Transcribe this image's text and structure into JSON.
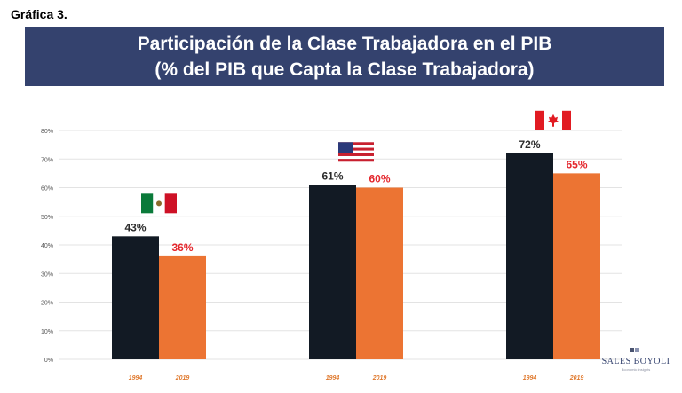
{
  "figure_label": "Gráfica 3.",
  "header": {
    "title_line1": "Participación de la Clase Trabajadora en el PIB",
    "title_line2": "(% del PIB que Capta la Clase Trabajadora)",
    "banner_color": "#34426e"
  },
  "chart_data": {
    "type": "bar",
    "groups": [
      {
        "flag": "mexico-flag-icon",
        "years": [
          "1994",
          "2019"
        ],
        "values": [
          43,
          36
        ],
        "labels": [
          "43%",
          "36%"
        ]
      },
      {
        "flag": "usa-flag-icon",
        "years": [
          "1994",
          "2019"
        ],
        "values": [
          61,
          60
        ],
        "labels": [
          "61%",
          "60%"
        ]
      },
      {
        "flag": "canada-flag-icon",
        "years": [
          "1994",
          "2019"
        ],
        "values": [
          72,
          65
        ],
        "labels": [
          "72%",
          "65%"
        ]
      }
    ],
    "series_colors": [
      "#121a24",
      "#ec7433"
    ],
    "label_colors": [
      "#2b2b2b",
      "#e4262c"
    ],
    "year_label_color": "#e07a2f",
    "yticks": [
      "0%",
      "10%",
      "20%",
      "30%",
      "40%",
      "50%",
      "60%",
      "70%",
      "80%"
    ],
    "ylim": [
      0,
      80
    ],
    "grid": true
  },
  "logo": {
    "name": "SALES BOYOLI",
    "subtitle": "Economic Insights"
  }
}
